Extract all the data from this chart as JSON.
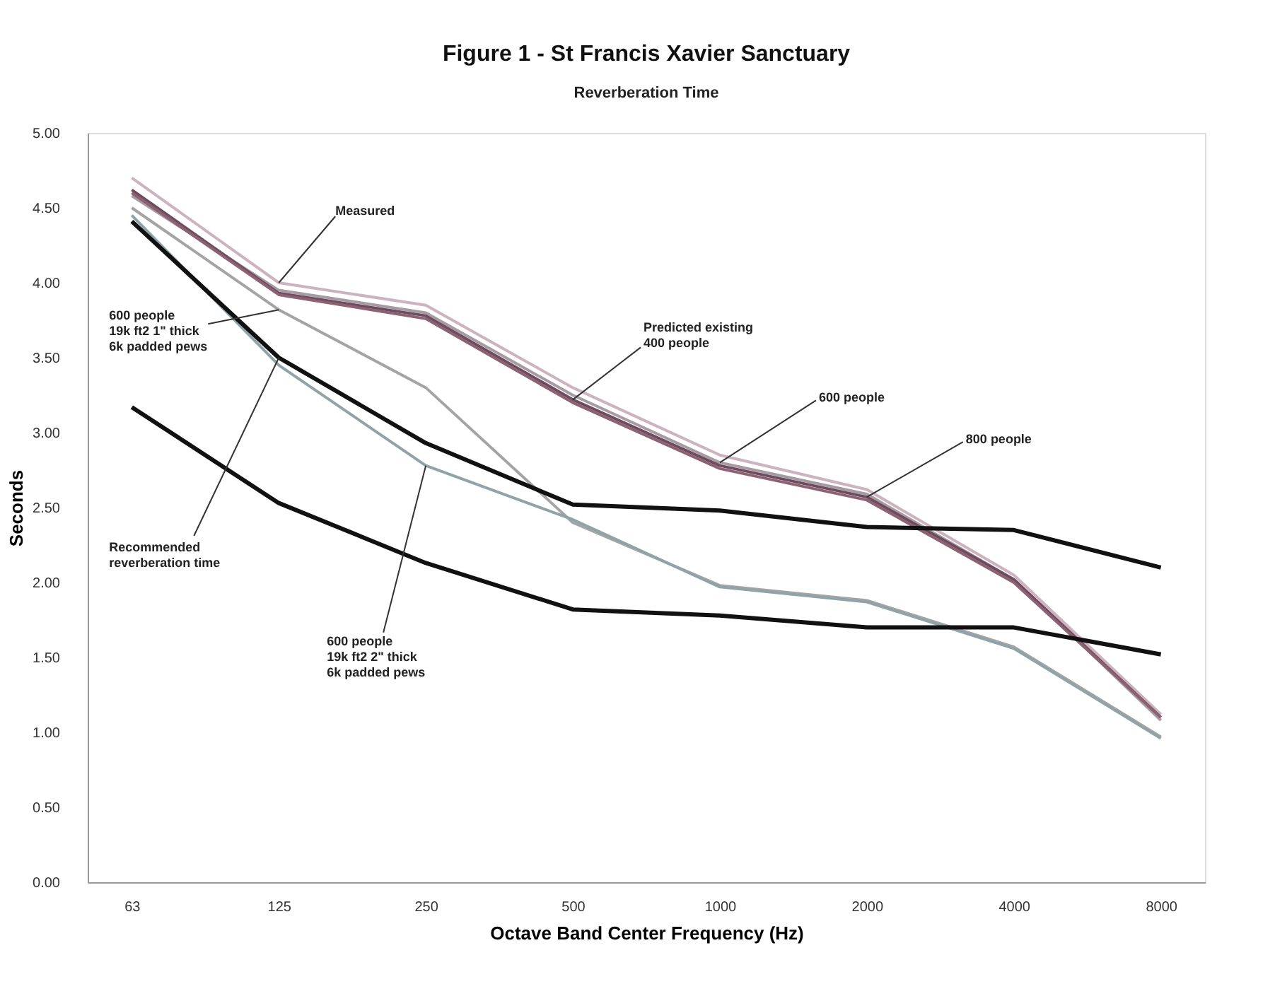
{
  "chart_data": {
    "type": "line",
    "title": "Figure 1 - St Francis Xavier Sanctuary",
    "subtitle": "Reverberation Time",
    "xlabel": "Octave Band Center Frequency (Hz)",
    "ylabel": "Seconds",
    "categories": [
      "63",
      "125",
      "250",
      "500",
      "1000",
      "2000",
      "4000",
      "8000"
    ],
    "series": [
      {
        "color": "#cdb3bf",
        "values": [
          4.7,
          4.0,
          3.85,
          3.3,
          2.85,
          2.62,
          2.05,
          1.12
        ]
      },
      {
        "color": "#a89aa2",
        "values": [
          4.58,
          3.95,
          3.8,
          3.25,
          2.8,
          2.59,
          2.02,
          1.08
        ]
      },
      {
        "color": "#6e4b5e",
        "values": [
          4.62,
          3.93,
          3.78,
          3.22,
          2.78,
          2.57,
          2.02,
          1.1
        ]
      },
      {
        "color": "#8a6272",
        "values": [
          4.6,
          3.92,
          3.76,
          3.2,
          2.76,
          2.55,
          2.0,
          1.1
        ]
      },
      {
        "color": "#a4a4a4",
        "values": [
          4.5,
          3.82,
          3.3,
          2.4,
          1.98,
          1.88,
          1.57,
          0.97
        ]
      },
      {
        "color": "#8fa3a8",
        "values": [
          4.45,
          3.45,
          2.78,
          2.42,
          1.97,
          1.87,
          1.56,
          0.96
        ]
      },
      {
        "color": "#111111",
        "values": [
          4.41,
          3.5,
          2.93,
          2.52,
          2.48,
          2.37,
          2.35,
          2.1
        ]
      },
      {
        "color": "#111111",
        "values": [
          3.17,
          2.53,
          2.13,
          1.82,
          1.78,
          1.7,
          1.7,
          1.52
        ]
      }
    ],
    "ylim": [
      0,
      5
    ],
    "yticks": [
      {
        "value": 0,
        "label": "0.00"
      },
      {
        "value": 0.5,
        "label": "0.50"
      },
      {
        "value": 1,
        "label": "1.00"
      },
      {
        "value": 1.5,
        "label": "1.50"
      },
      {
        "value": 2,
        "label": "2.00"
      },
      {
        "value": 2.5,
        "label": "2.50"
      },
      {
        "value": 3,
        "label": "3.00"
      },
      {
        "value": 3.5,
        "label": "3.50"
      },
      {
        "value": 4,
        "label": "4.00"
      },
      {
        "value": 4.5,
        "label": "4.50"
      },
      {
        "value": 5,
        "label": "5.00"
      }
    ],
    "annotations": [
      {
        "text": "Measured",
        "x": "125",
        "y": 4.0
      },
      {
        "text": "Predicted existing\n400 people",
        "x": "500",
        "y": 3.22
      },
      {
        "text": "600 people",
        "x": "1000",
        "y": 2.8
      },
      {
        "text": "800 people",
        "x": "2000",
        "y": 2.57
      },
      {
        "text": "600 people\n19k ft2 1\" thick\n6k padded pews",
        "x": "125",
        "y": 3.82
      },
      {
        "text": "Recommended\nreverberation time",
        "x": "125",
        "y": 3.5
      },
      {
        "text": "600 people\n19k ft2 2\" thick\n6k padded pews",
        "x": "250",
        "y": 2.78
      }
    ],
    "grid": false,
    "marker": "none",
    "line_style": "solid"
  }
}
